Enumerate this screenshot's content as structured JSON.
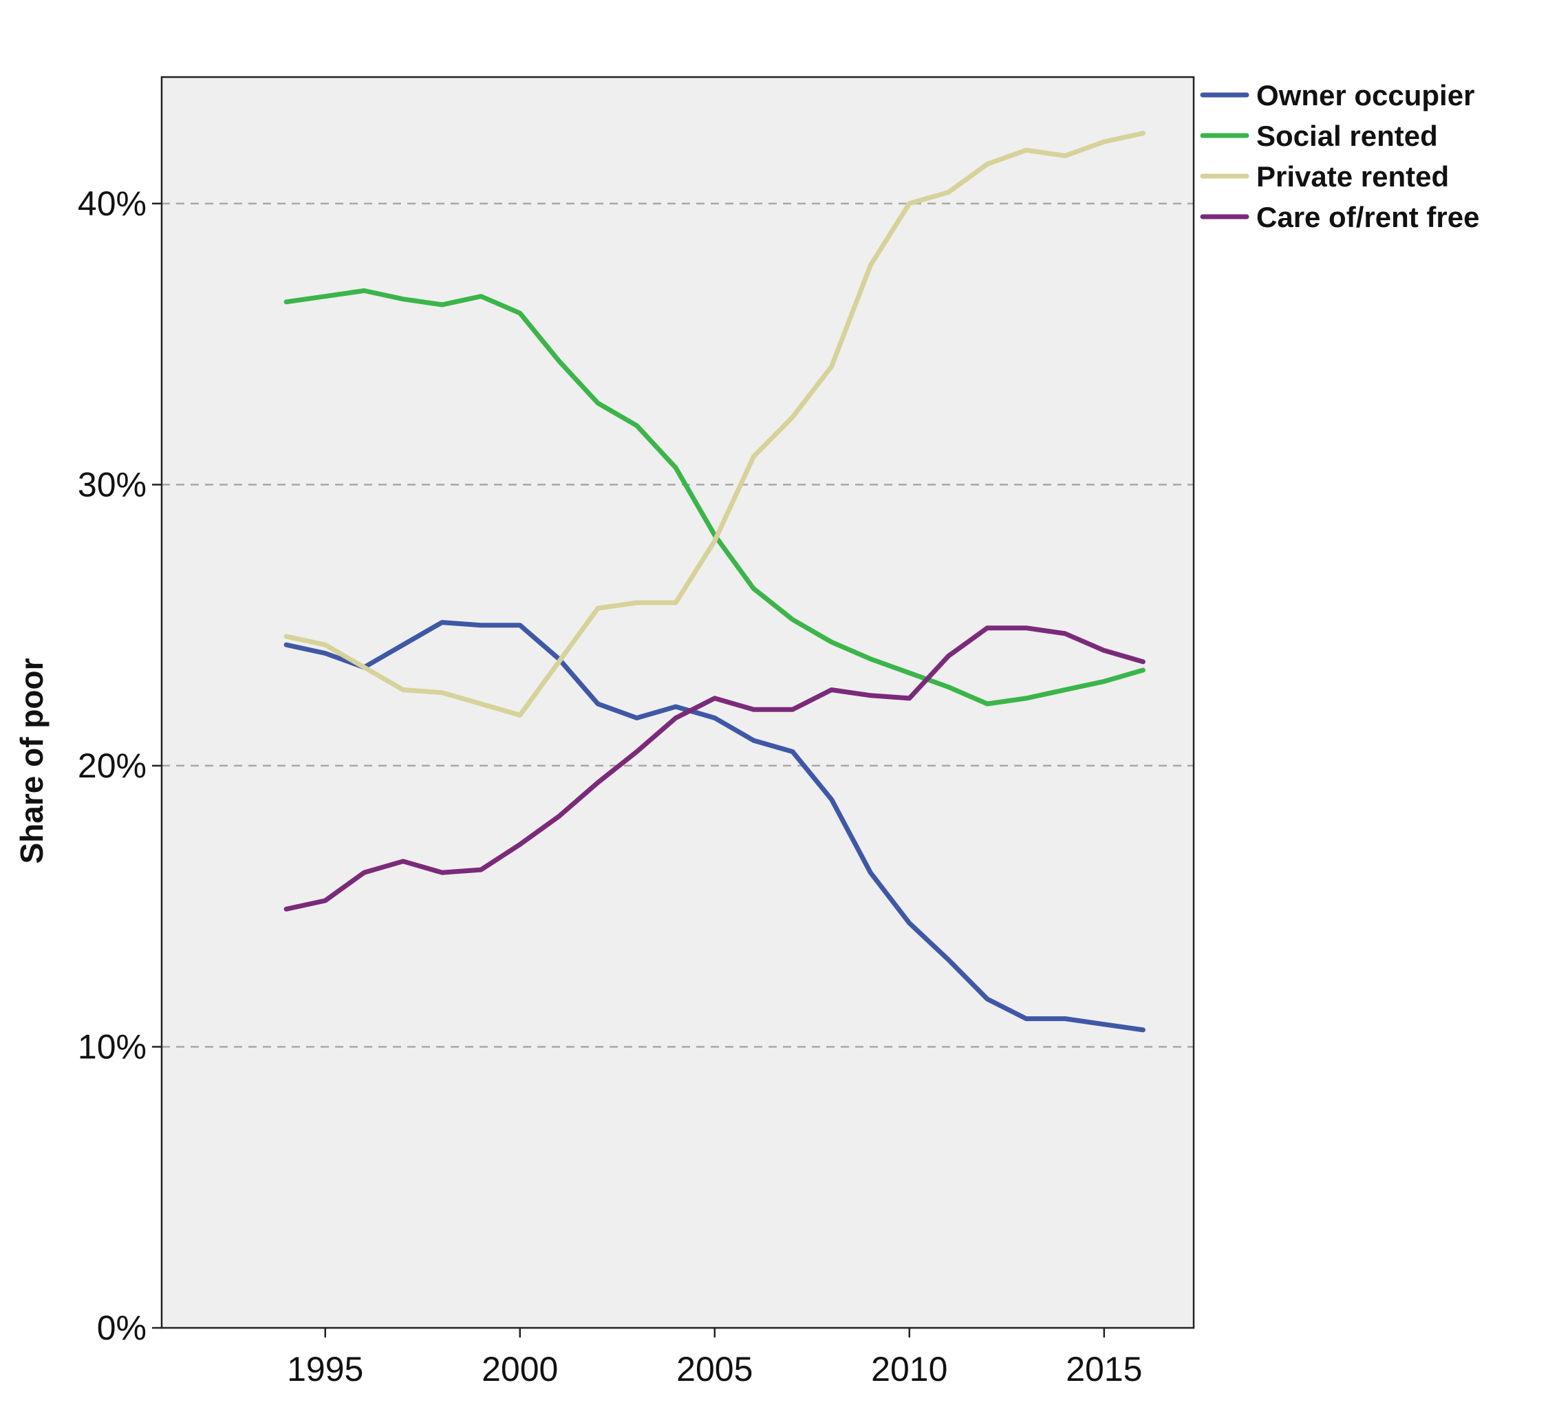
{
  "chart_data": {
    "type": "line",
    "title": "",
    "xlabel": "",
    "ylabel": "Share of poor",
    "xlim": [
      1990.8,
      2017.3
    ],
    "ylim": [
      0,
      44.5
    ],
    "x_ticks": [
      1995,
      2000,
      2005,
      2010,
      2015
    ],
    "x_tick_labels": [
      "1995",
      "2000",
      "2005",
      "2010",
      "2015"
    ],
    "y_ticks": [
      0,
      10,
      20,
      30,
      40
    ],
    "y_tick_labels": [
      "0%",
      "10%",
      "20%",
      "30%",
      "40%"
    ],
    "grid": "horizontal dashed at 10%, 20%, 30%, 40%",
    "legend_position": "right-top outside",
    "plot_background": "#efefef",
    "x": [
      1994,
      1995,
      1996,
      1997,
      1998,
      1999,
      2000,
      2001,
      2002,
      2003,
      2004,
      2005,
      2006,
      2007,
      2008,
      2009,
      2010,
      2011,
      2012,
      2013,
      2014,
      2015,
      2016
    ],
    "series": [
      {
        "name": "Owner occupier",
        "color": "#3f58a6",
        "values": [
          24.3,
          24.0,
          23.5,
          24.3,
          25.1,
          25.0,
          25.0,
          23.8,
          22.2,
          21.7,
          22.1,
          21.7,
          20.9,
          20.5,
          18.8,
          16.2,
          14.4,
          13.1,
          11.7,
          11.0,
          11.0,
          10.8,
          10.6
        ]
      },
      {
        "name": "Social rented",
        "color": "#3bb54a",
        "values": [
          36.5,
          36.7,
          36.9,
          36.6,
          36.4,
          36.7,
          36.1,
          34.4,
          32.9,
          32.1,
          30.6,
          28.2,
          26.3,
          25.2,
          24.4,
          23.8,
          23.3,
          22.8,
          22.2,
          22.4,
          22.7,
          23.0,
          23.4
        ]
      },
      {
        "name": "Private rented",
        "color": "#d6d29a",
        "values": [
          24.6,
          24.3,
          23.5,
          22.7,
          22.6,
          22.2,
          21.8,
          23.7,
          25.6,
          25.8,
          25.8,
          28.0,
          31.0,
          32.4,
          34.2,
          37.8,
          40.0,
          40.4,
          41.4,
          41.9,
          41.7,
          42.2,
          42.5
        ]
      },
      {
        "name": "Care of/rent free",
        "color": "#7b2a7a",
        "values": [
          14.9,
          15.2,
          16.2,
          16.6,
          16.2,
          16.3,
          17.2,
          18.2,
          19.4,
          20.5,
          21.7,
          22.4,
          22.0,
          22.0,
          22.7,
          22.5,
          22.4,
          23.9,
          24.9,
          24.9,
          24.7,
          24.1,
          23.7
        ]
      }
    ]
  }
}
